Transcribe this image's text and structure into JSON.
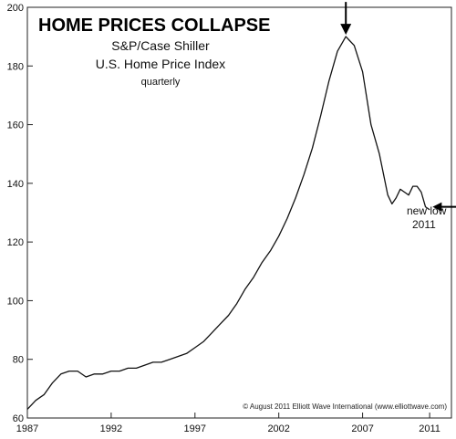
{
  "chart_data": {
    "type": "line",
    "title": "HOME PRICES COLLAPSE",
    "subtitle_lines": [
      "S&P/Case Shiller",
      "U.S. Home Price Index",
      "quarterly"
    ],
    "xlabel": "",
    "ylabel": "",
    "xlim": [
      1987,
      2012.3
    ],
    "ylim": [
      60,
      200
    ],
    "x_ticks": [
      1987,
      1992,
      1997,
      2002,
      2007,
      2011
    ],
    "y_ticks": [
      60,
      80,
      100,
      120,
      140,
      160,
      180,
      200
    ],
    "grid": false,
    "legend": "none",
    "line_color": "#111111",
    "series": [
      {
        "x": [
          1987.0,
          1987.5,
          1988.0,
          1988.5,
          1989.0,
          1989.5,
          1990.0,
          1990.5,
          1991.0,
          1991.5,
          1992.0,
          1992.5,
          1993.0,
          1993.5,
          1994.0,
          1994.5,
          1995.0,
          1995.5,
          1996.0,
          1996.5,
          1997.0,
          1997.5,
          1998.0,
          1998.5,
          1999.0,
          1999.5,
          2000.0,
          2000.5,
          2001.0,
          2001.5,
          2002.0,
          2002.5,
          2003.0,
          2003.5,
          2004.0,
          2004.5,
          2005.0,
          2005.5,
          2006.0,
          2006.5,
          2007.0,
          2007.5,
          2008.0,
          2008.5,
          2008.75,
          2009.0,
          2009.25,
          2009.5,
          2009.75,
          2010.0,
          2010.25,
          2010.5,
          2010.75,
          2011.0
        ],
        "y": [
          63,
          66,
          68,
          72,
          75,
          76,
          76,
          74,
          75,
          75,
          76,
          76,
          77,
          77,
          78,
          79,
          79,
          80,
          81,
          82,
          84,
          86,
          89,
          92,
          95,
          99,
          104,
          108,
          113,
          117,
          122,
          128,
          135,
          143,
          152,
          163,
          175,
          185,
          190,
          187,
          178,
          160,
          150,
          136,
          133,
          135,
          138,
          137,
          136,
          139,
          139,
          137,
          132,
          131
        ]
      }
    ],
    "annotations": {
      "new_low_label": "new low",
      "new_low_year": "2011",
      "new_low_point": {
        "x": 2010.85,
        "y": 132
      },
      "peak_point": {
        "x": 2006.0,
        "y": 190
      }
    },
    "credit": "© August 2011 Elliott Wave International (www.elliottwave.com)"
  }
}
